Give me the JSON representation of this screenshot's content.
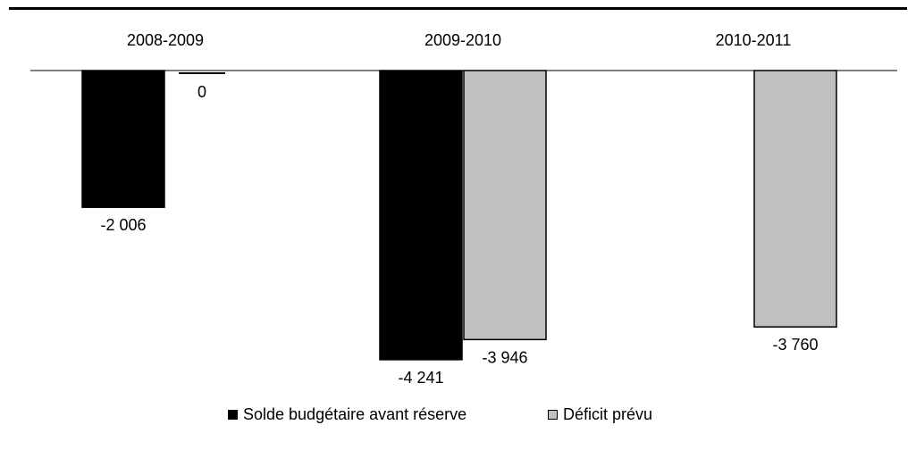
{
  "chart_data": {
    "type": "bar",
    "categories": [
      "2008-2009",
      "2009-2010",
      "2010-2011"
    ],
    "series": [
      {
        "name": "Solde budgétaire avant réserve",
        "values": [
          -2006,
          -4241,
          null
        ],
        "labels": [
          "-2 006",
          "-4 241",
          ""
        ],
        "color": "#000000"
      },
      {
        "name": "Déficit prévu",
        "values": [
          0,
          -3946,
          -3760
        ],
        "labels": [
          "0",
          "-3 946",
          "-3 760"
        ],
        "color": "#c0c0c0"
      }
    ],
    "ylim": [
      -4400,
      0
    ],
    "grid": false,
    "legend_position": "bottom",
    "title": "",
    "xlabel": "",
    "ylabel": ""
  }
}
